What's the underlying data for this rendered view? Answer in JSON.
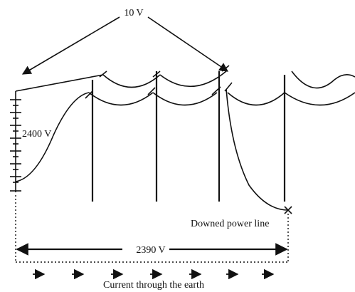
{
  "labels": {
    "top_voltage": "10 V",
    "source_voltage": "2400 V",
    "downed_line": "Downed power line",
    "ground_voltage": "2390 V",
    "current": "Current through the earth"
  }
}
